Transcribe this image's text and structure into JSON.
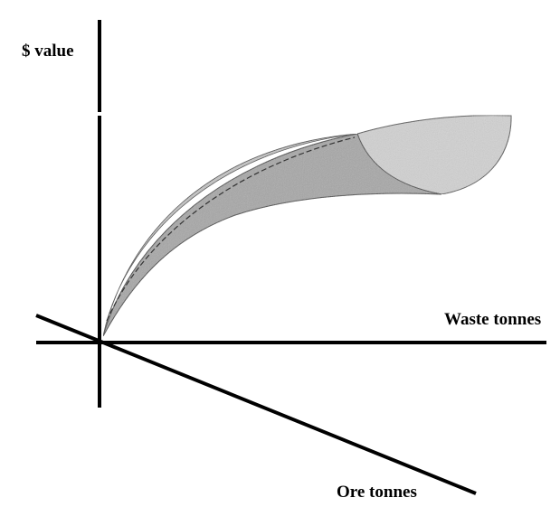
{
  "axes": {
    "value_label": "$ value",
    "waste_label": "Waste tonnes",
    "ore_label": "Ore tonnes"
  },
  "colors": {
    "axis": "#000000",
    "surface_front": "#a8a8a8",
    "surface_back": "#cfcfcf",
    "surface_inner": "#8e8e8e",
    "edge": "#3a3a3a"
  }
}
